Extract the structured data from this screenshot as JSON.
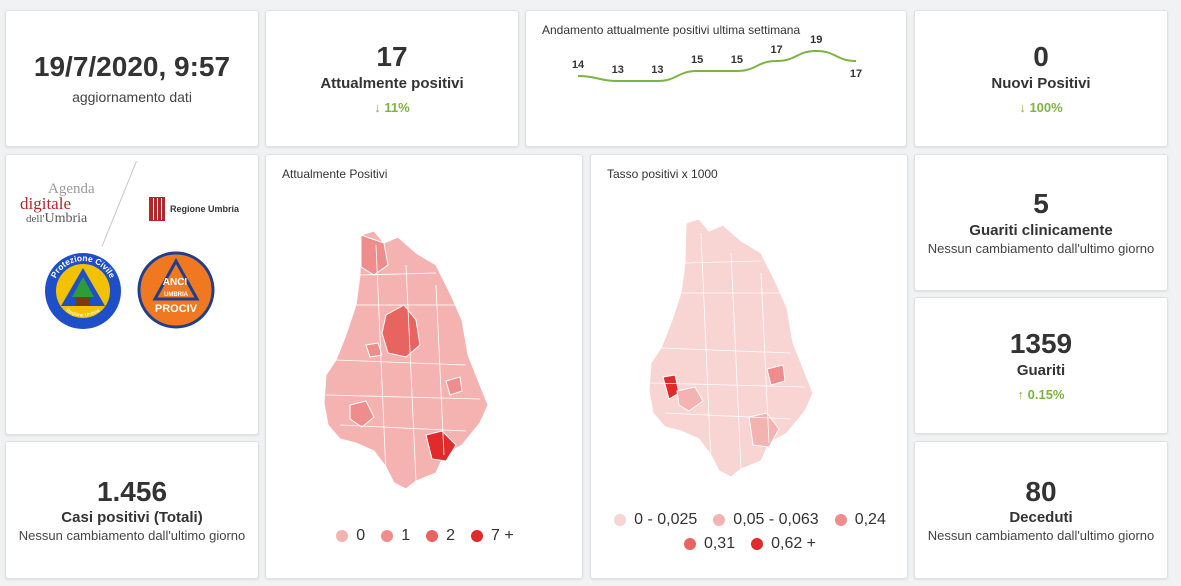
{
  "update": {
    "datetime": "19/7/2020, 9:57",
    "label": "aggiornamento dati"
  },
  "currently_positive": {
    "value": "17",
    "label": "Attualmente positivi",
    "delta": "11%"
  },
  "trend": {
    "title": "Andamento attualmente positivi ultima settimana",
    "chart_data": {
      "type": "line",
      "title": "Andamento attualmente positivi ultima settimana",
      "x": [
        1,
        2,
        3,
        4,
        5,
        6,
        7,
        8
      ],
      "values": [
        14,
        13,
        13,
        15,
        15,
        17,
        19,
        17
      ],
      "color": "#7cb342"
    }
  },
  "new_positive": {
    "value": "0",
    "label": "Nuovi Positivi",
    "delta": "100%"
  },
  "logos": {
    "agenda_line1": "Agenda",
    "agenda_line2": "digitale",
    "agenda_line3a": "dell'",
    "agenda_line3b": "Umbria",
    "regione": "Regione Umbria",
    "pc_top": "Protezione Civile",
    "pc_bottom": "Regione Umbria",
    "anci_1": "ANCI",
    "anci_2": "UMBRIA",
    "anci_3": "PROCIV"
  },
  "map1": {
    "title": "Attualmente Positivi",
    "legend": [
      {
        "label": "0",
        "color": "#f4b3b1"
      },
      {
        "label": "1",
        "color": "#ee8d8b"
      },
      {
        "label": "2",
        "color": "#e86461"
      },
      {
        "label": "7 +",
        "color": "#e02b2b"
      }
    ]
  },
  "map2": {
    "title": "Tasso positivi x 1000",
    "legend": [
      {
        "label": "0 - 0,025",
        "color": "#f8d4d3"
      },
      {
        "label": "0,05 - 0,063",
        "color": "#f4b3b1"
      },
      {
        "label": "0,24",
        "color": "#ee8d8b"
      },
      {
        "label": "0,31",
        "color": "#e86461"
      },
      {
        "label": "0,62 +",
        "color": "#e02b2b"
      }
    ]
  },
  "clinically_recovered": {
    "value": "5",
    "label": "Guariti clinicamente",
    "sub": "Nessun cambiamento dall'ultimo giorno"
  },
  "recovered": {
    "value": "1359",
    "label": "Guariti",
    "delta": "0.15%"
  },
  "total_cases": {
    "value": "1.456",
    "label": "Casi positivi (Totali)",
    "sub": "Nessun cambiamento dall'ultimo giorno"
  },
  "deceased": {
    "value": "80",
    "label": "Deceduti",
    "sub": "Nessun cambiamento dall'ultimo giorno"
  },
  "arrows": {
    "down": "↓",
    "up": "↑"
  }
}
